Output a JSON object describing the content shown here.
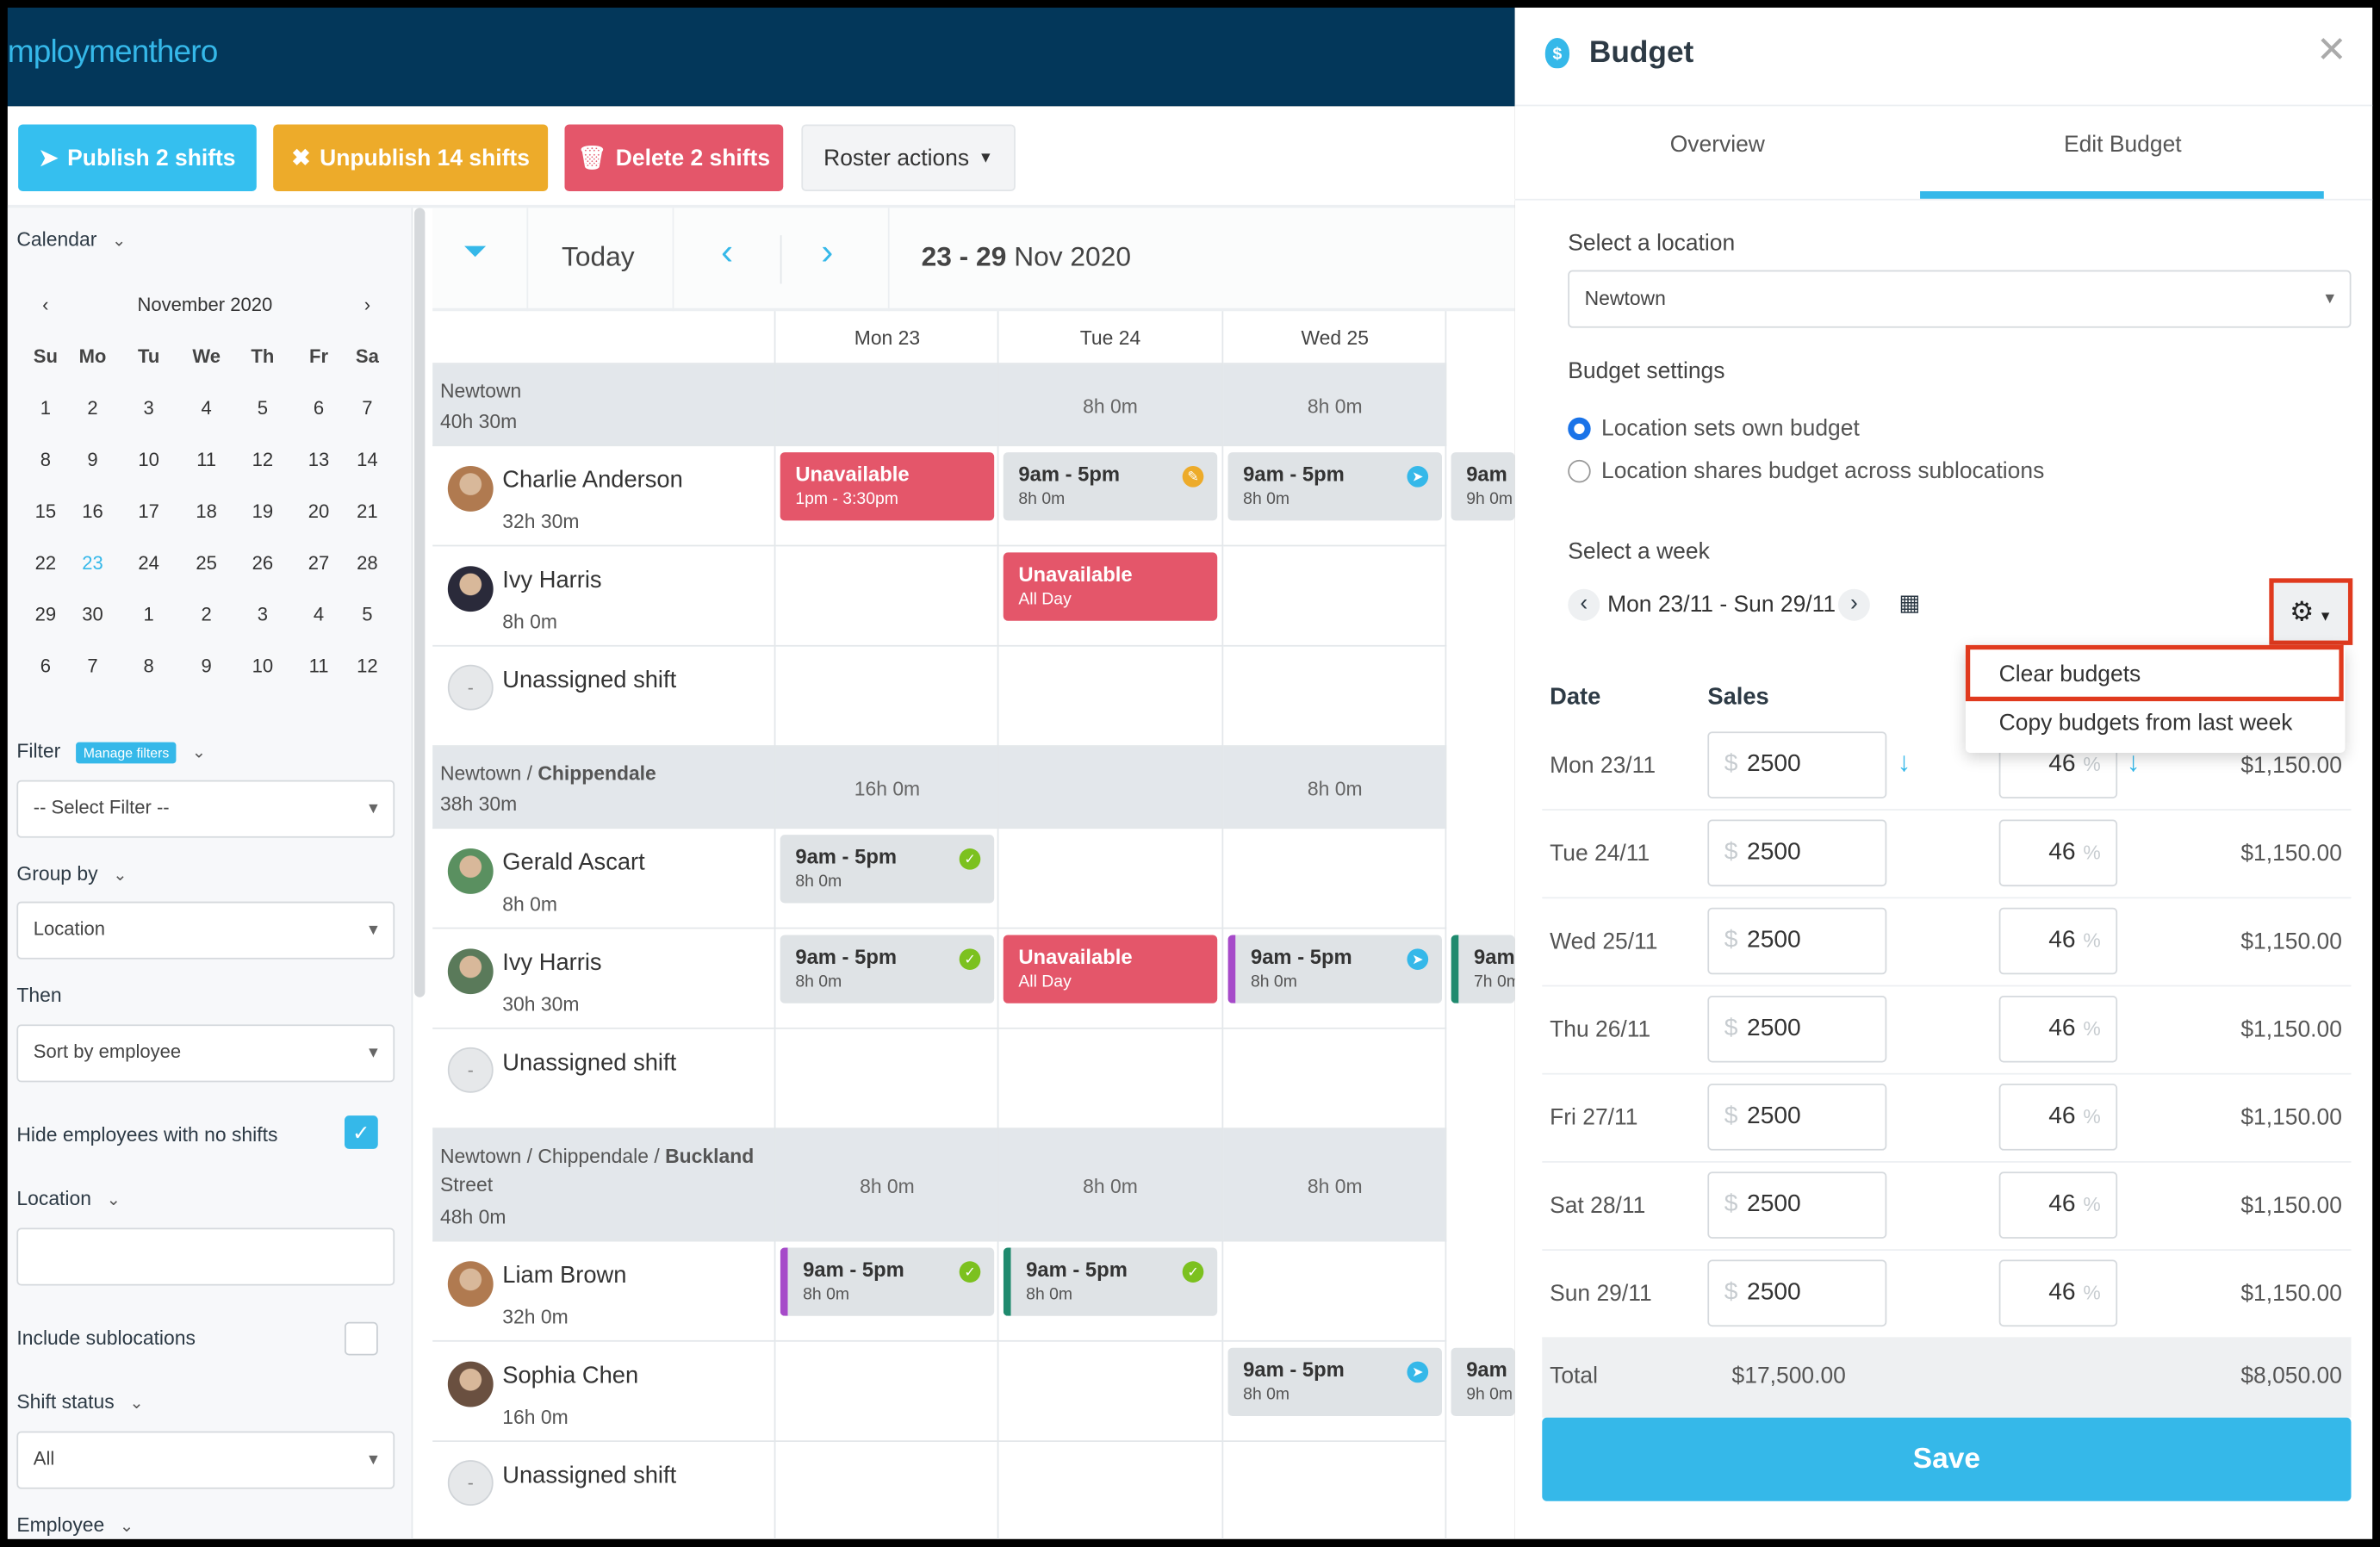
{
  "header": {
    "logo": "mploymenthero"
  },
  "toolbar": {
    "publish": "Publish 2 shifts",
    "unpublish": "Unpublish 14 shifts",
    "delete": "Delete 2 shifts",
    "roster_actions": "Roster actions"
  },
  "sidebar": {
    "calendar_label": "Calendar",
    "month": "November 2020",
    "weekdays": [
      "Su",
      "Mo",
      "Tu",
      "We",
      "Th",
      "Fr",
      "Sa"
    ],
    "weeks": [
      [
        "1",
        "2",
        "3",
        "4",
        "5",
        "6",
        "7"
      ],
      [
        "8",
        "9",
        "10",
        "11",
        "12",
        "13",
        "14"
      ],
      [
        "15",
        "16",
        "17",
        "18",
        "19",
        "20",
        "21"
      ],
      [
        "22",
        "23",
        "24",
        "25",
        "26",
        "27",
        "28"
      ],
      [
        "29",
        "30",
        "1",
        "2",
        "3",
        "4",
        "5"
      ],
      [
        "6",
        "7",
        "8",
        "9",
        "10",
        "11",
        "12"
      ]
    ],
    "today": "23",
    "filter_label": "Filter",
    "manage_filters": "Manage filters",
    "filter_placeholder": "-- Select Filter --",
    "group_by_label": "Group by",
    "group_by_value": "Location",
    "then_label": "Then",
    "then_value": "Sort by employee",
    "hide_employees": "Hide employees with no shifts",
    "hide_checked": true,
    "location_label": "Location",
    "location_value": "",
    "include_sublocations": "Include sublocations",
    "include_checked": false,
    "shift_status_label": "Shift status",
    "shift_status_value": "All",
    "employee_label": "Employee"
  },
  "roster": {
    "today": "Today",
    "range_bold": "23 - 29",
    "range_rest": "Nov 2020",
    "days": [
      "Mon 23",
      "Tue 24",
      "Wed 25"
    ],
    "rows": [
      {
        "type": "group",
        "name": "Newtown",
        "hours": "40h 30m",
        "totals": [
          "",
          "8h 0m",
          "8h 0m"
        ]
      },
      {
        "type": "emp",
        "name": "Charlie Anderson",
        "hours": "32h 30m",
        "shifts": [
          {
            "kind": "unav",
            "t": "Unavailable",
            "s": "1pm - 3:30pm"
          },
          {
            "t": "9am - 5pm",
            "s": "8h 0m",
            "icon": "pending"
          },
          {
            "t": "9am - 5pm",
            "s": "8h 0m",
            "icon": "sent"
          },
          {
            "t": "9am",
            "s": "9h 0m"
          }
        ]
      },
      {
        "type": "emp",
        "name": "Ivy Harris",
        "hours": "8h 0m",
        "shifts": [
          null,
          {
            "kind": "unav",
            "t": "Unavailable",
            "s": "All Day"
          },
          null,
          null
        ]
      },
      {
        "type": "unassigned",
        "name": "Unassigned shift"
      },
      {
        "type": "group",
        "name": "Newtown / ",
        "name_bold": "Chippendale",
        "hours": "38h 30m",
        "totals": [
          "16h 0m",
          "",
          "8h 0m"
        ]
      },
      {
        "type": "emp",
        "name": "Gerald Ascart",
        "hours": "8h 0m",
        "shifts": [
          {
            "t": "9am - 5pm",
            "s": "8h 0m",
            "icon": "check"
          },
          null,
          null,
          null
        ]
      },
      {
        "type": "emp",
        "name": "Ivy Harris",
        "hours": "30h 30m",
        "shifts": [
          {
            "t": "9am - 5pm",
            "s": "8h 0m",
            "icon": "check"
          },
          {
            "kind": "unav",
            "t": "Unavailable",
            "s": "All Day"
          },
          {
            "stripe": "p",
            "t": "9am - 5pm",
            "s": "8h 0m",
            "icon": "sent"
          },
          {
            "stripe": "g",
            "t": "9am",
            "s": "7h 0m"
          }
        ]
      },
      {
        "type": "unassigned",
        "name": "Unassigned shift"
      },
      {
        "type": "group",
        "name": "Newtown / Chippendale / ",
        "name_bold": "Buckland",
        "name2": "Street",
        "hours": "48h 0m",
        "totals": [
          "8h 0m",
          "8h 0m",
          "8h 0m"
        ]
      },
      {
        "type": "emp",
        "name": "Liam Brown",
        "hours": "32h 0m",
        "shifts": [
          {
            "stripe": "p",
            "t": "9am - 5pm",
            "s": "8h 0m",
            "icon": "check"
          },
          {
            "stripe": "g",
            "t": "9am - 5pm",
            "s": "8h 0m",
            "icon": "check"
          },
          null,
          null
        ]
      },
      {
        "type": "emp",
        "name": "Sophia Chen",
        "hours": "16h 0m",
        "shifts": [
          null,
          null,
          {
            "t": "9am - 5pm",
            "s": "8h 0m",
            "icon": "sent"
          },
          {
            "t": "9am",
            "s": "9h 0m"
          }
        ]
      },
      {
        "type": "unassigned",
        "name": "Unassigned shift"
      }
    ]
  },
  "budget": {
    "title": "Budget",
    "tabs": [
      "Overview",
      "Edit Budget"
    ],
    "active_tab": 1,
    "location_label": "Select a location",
    "location_value": "Newtown",
    "settings_label": "Budget settings",
    "radio_own": "Location sets own budget",
    "radio_shared": "Location shares budget across sublocations",
    "radio_selected": 0,
    "week_label": "Select a week",
    "week_value": "Mon 23/11 - Sun 29/11",
    "menu": [
      "Clear budgets",
      "Copy budgets from last week"
    ],
    "col_date": "Date",
    "col_sales": "Sales",
    "currency": "$",
    "percent": "%",
    "rows": [
      {
        "date": "Mon 23/11",
        "sales": "2500",
        "pct": "46",
        "amount": "$1,150.00"
      },
      {
        "date": "Tue 24/11",
        "sales": "2500",
        "pct": "46",
        "amount": "$1,150.00"
      },
      {
        "date": "Wed 25/11",
        "sales": "2500",
        "pct": "46",
        "amount": "$1,150.00"
      },
      {
        "date": "Thu 26/11",
        "sales": "2500",
        "pct": "46",
        "amount": "$1,150.00"
      },
      {
        "date": "Fri 27/11",
        "sales": "2500",
        "pct": "46",
        "amount": "$1,150.00"
      },
      {
        "date": "Sat 28/11",
        "sales": "2500",
        "pct": "46",
        "amount": "$1,150.00"
      },
      {
        "date": "Sun 29/11",
        "sales": "2500",
        "pct": "46",
        "amount": "$1,150.00"
      }
    ],
    "total_label": "Total",
    "total_sales": "$17,500.00",
    "total_amount": "$8,050.00",
    "save": "Save"
  },
  "colors": {
    "navy": "#03375a",
    "blue": "#35b8e9",
    "orange": "#edab2a",
    "red": "#e4566a",
    "highlight": "#e03a1e"
  }
}
